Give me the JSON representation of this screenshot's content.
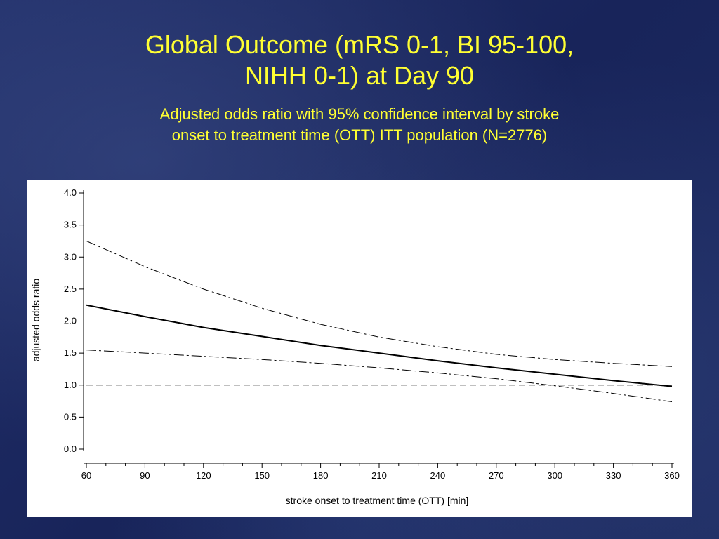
{
  "slide": {
    "title_line1": "Global Outcome (mRS 0-1, BI 95-100,",
    "title_line2": "NIHH 0-1) at Day 90",
    "subtitle_line1": "Adjusted odds ratio with 95% confidence interval by stroke",
    "subtitle_line2": "onset to treatment time (OTT) ITT population (N=2776)",
    "title_color": "#ffff33"
  },
  "chart_data": {
    "type": "line",
    "xlabel": "stroke onset to treatment time (OTT) [min]",
    "ylabel": "adjusted odds ratio",
    "xlim": [
      60,
      360
    ],
    "ylim": [
      0.0,
      4.0
    ],
    "x_ticks": [
      60,
      90,
      120,
      150,
      180,
      210,
      240,
      270,
      300,
      330,
      360
    ],
    "y_ticks": [
      "0.0",
      "0.5",
      "1.0",
      "1.5",
      "2.0",
      "2.5",
      "3.0",
      "3.5",
      "4.0"
    ],
    "grid": false,
    "legend": "none",
    "reference_line": {
      "y": 1.0,
      "style": "dashed"
    },
    "x": [
      60,
      90,
      120,
      150,
      180,
      210,
      240,
      270,
      300,
      330,
      360
    ],
    "series": [
      {
        "role": "upper_ci",
        "style": "dash-dot",
        "values": [
          3.25,
          2.85,
          2.5,
          2.2,
          1.95,
          1.75,
          1.6,
          1.48,
          1.4,
          1.34,
          1.29
        ]
      },
      {
        "role": "estimate",
        "style": "solid",
        "values": [
          2.25,
          2.07,
          1.9,
          1.76,
          1.62,
          1.5,
          1.38,
          1.27,
          1.17,
          1.07,
          0.98
        ]
      },
      {
        "role": "lower_ci",
        "style": "dash-dot",
        "values": [
          1.55,
          1.5,
          1.45,
          1.4,
          1.34,
          1.27,
          1.19,
          1.1,
          0.99,
          0.87,
          0.74
        ]
      }
    ]
  }
}
